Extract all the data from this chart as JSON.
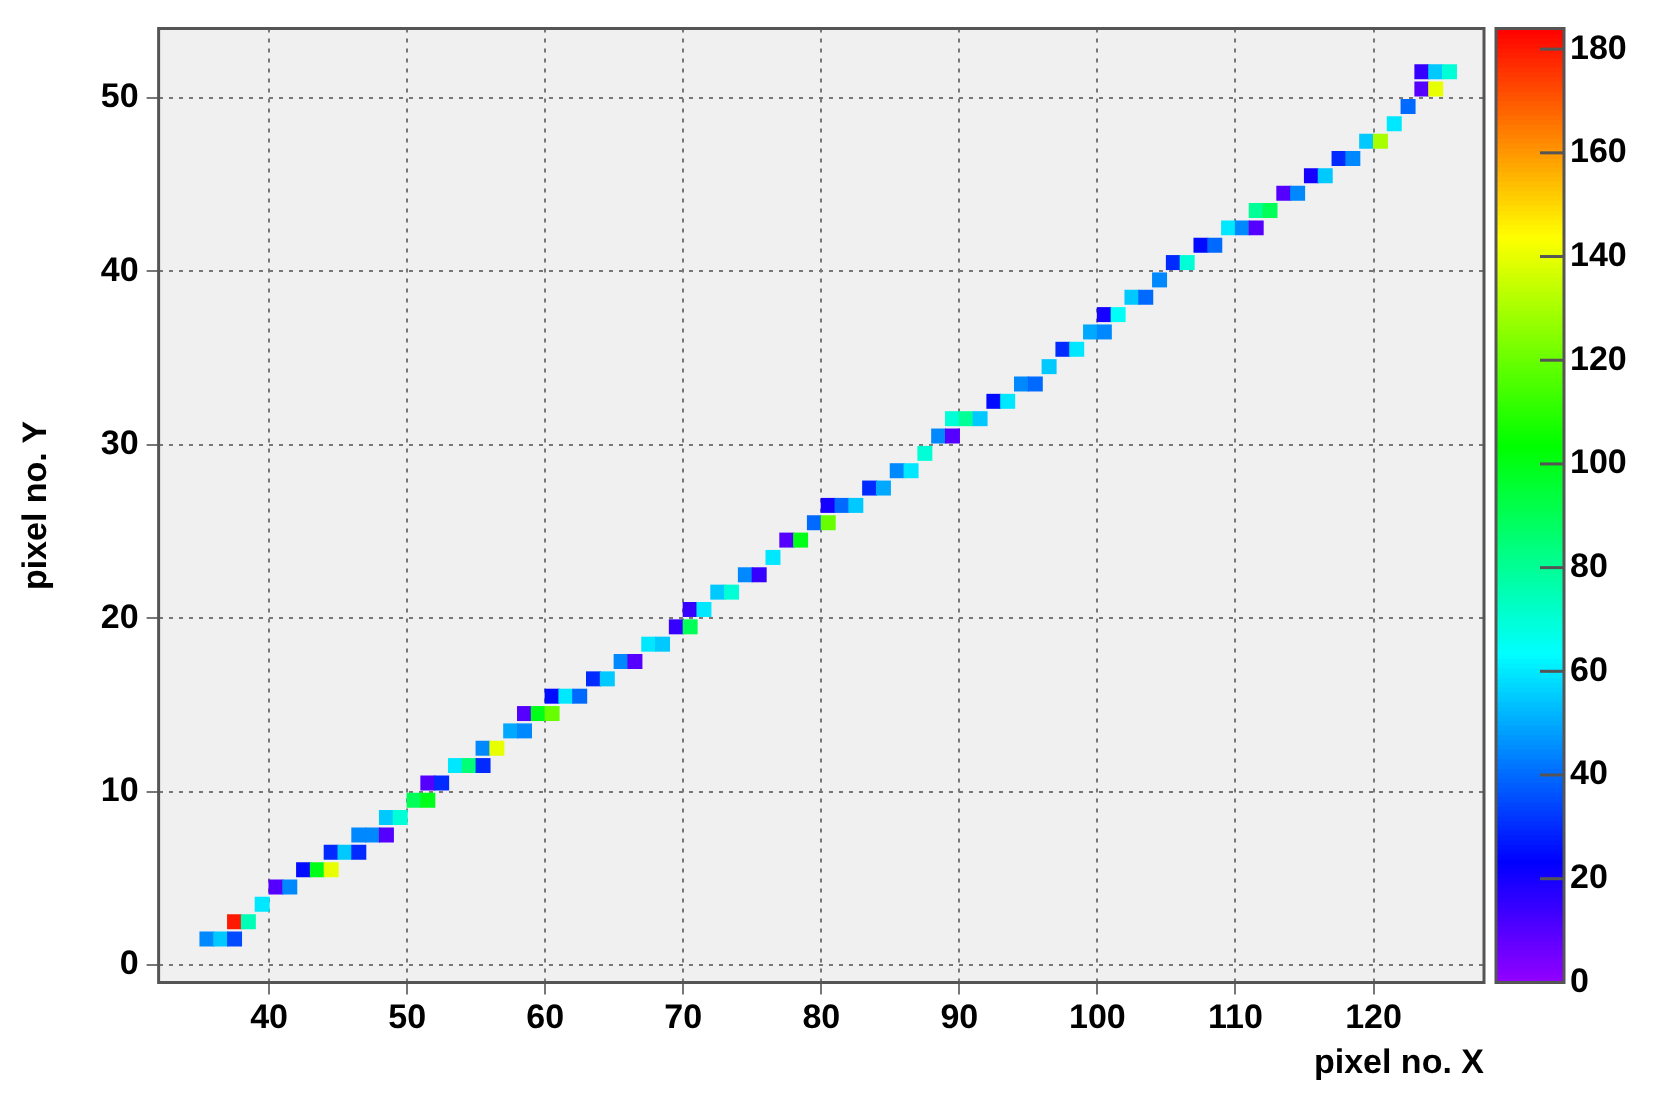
{
  "chart_data": {
    "type": "scatter",
    "xlabel": "pixel no. X",
    "ylabel": "pixel no. Y",
    "marker": "square",
    "grid": true,
    "x": [
      35.5,
      36.5,
      37.5,
      37.5,
      38.5,
      39.5,
      40.5,
      41.5,
      42.5,
      43.5,
      44.5,
      44.5,
      45.5,
      46.5,
      46.5,
      47.5,
      48.5,
      48.5,
      49.5,
      50.5,
      51.5,
      51.5,
      52.5,
      53.5,
      54.5,
      55.5,
      55.5,
      56.5,
      57.5,
      58.5,
      58.5,
      59.5,
      60.5,
      60.5,
      61.5,
      62.5,
      63.5,
      64.5,
      65.5,
      66.5,
      67.5,
      68.5,
      69.5,
      70.5,
      70.5,
      71.5,
      72.5,
      73.5,
      74.5,
      75.5,
      76.5,
      77.5,
      78.5,
      79.5,
      80.5,
      80.5,
      81.5,
      82.5,
      83.5,
      84.5,
      85.5,
      86.5,
      87.5,
      88.5,
      89.5,
      89.5,
      90.5,
      91.5,
      92.5,
      93.5,
      94.5,
      95.5,
      96.5,
      97.5,
      98.5,
      99.5,
      100.5,
      100.5,
      101.5,
      102.5,
      103.5,
      104.5,
      105.5,
      106.5,
      107.5,
      108.5,
      109.5,
      110.5,
      111.5,
      111.5,
      112.5,
      113.5,
      114.5,
      115.5,
      116.5,
      117.5,
      118.5,
      119.5,
      120.5,
      121.5,
      122.5,
      123.5,
      123.5,
      124.5,
      124.5,
      125.5
    ],
    "values": [
      1.5,
      1.5,
      1.5,
      2.5,
      2.5,
      3.5,
      4.5,
      4.5,
      5.5,
      5.5,
      5.5,
      6.5,
      6.5,
      6.5,
      7.5,
      7.5,
      7.5,
      8.5,
      8.5,
      9.5,
      9.5,
      10.5,
      10.5,
      11.5,
      11.5,
      11.5,
      12.5,
      12.5,
      13.5,
      13.5,
      14.5,
      14.5,
      14.5,
      15.5,
      15.5,
      15.5,
      16.5,
      16.5,
      17.5,
      17.5,
      18.5,
      18.5,
      19.5,
      19.5,
      20.5,
      20.5,
      21.5,
      21.5,
      22.5,
      22.5,
      23.5,
      24.5,
      24.5,
      25.5,
      25.5,
      26.5,
      26.5,
      26.5,
      27.5,
      27.5,
      28.5,
      28.5,
      29.5,
      30.5,
      30.5,
      31.5,
      31.5,
      31.5,
      32.5,
      32.5,
      33.5,
      33.5,
      34.5,
      35.5,
      35.5,
      36.5,
      36.5,
      37.5,
      37.5,
      38.5,
      38.5,
      39.5,
      40.5,
      40.5,
      41.5,
      41.5,
      42.5,
      42.5,
      42.5,
      43.5,
      43.5,
      44.5,
      44.5,
      45.5,
      45.5,
      46.5,
      46.5,
      47.5,
      47.5,
      48.5,
      49.5,
      50.5,
      51.5,
      50.5,
      51.5,
      51.5
    ],
    "cvalues": [
      45,
      55,
      35,
      180,
      75,
      60,
      10,
      45,
      25,
      100,
      140,
      30,
      55,
      30,
      45,
      45,
      10,
      55,
      70,
      90,
      100,
      10,
      30,
      60,
      85,
      30,
      45,
      140,
      50,
      45,
      10,
      100,
      120,
      25,
      60,
      40,
      30,
      55,
      45,
      10,
      60,
      55,
      15,
      90,
      15,
      60,
      55,
      70,
      45,
      15,
      60,
      10,
      100,
      40,
      120,
      20,
      40,
      55,
      30,
      50,
      45,
      60,
      70,
      45,
      10,
      70,
      80,
      55,
      25,
      60,
      45,
      40,
      55,
      30,
      60,
      50,
      45,
      20,
      65,
      55,
      40,
      45,
      30,
      70,
      25,
      40,
      60,
      45,
      10,
      80,
      90,
      10,
      45,
      20,
      55,
      30,
      45,
      55,
      130,
      60,
      40,
      10,
      15,
      140,
      55,
      70
    ],
    "xlim": [
      32,
      128
    ],
    "ylim": [
      -1,
      54
    ],
    "xticks": [
      40,
      50,
      60,
      70,
      80,
      90,
      100,
      110,
      120
    ],
    "yticks": [
      0,
      10,
      20,
      30,
      40,
      50
    ],
    "clim": [
      0,
      184
    ],
    "cticks": [
      0,
      20,
      40,
      60,
      80,
      100,
      120,
      140,
      160,
      180
    ]
  }
}
